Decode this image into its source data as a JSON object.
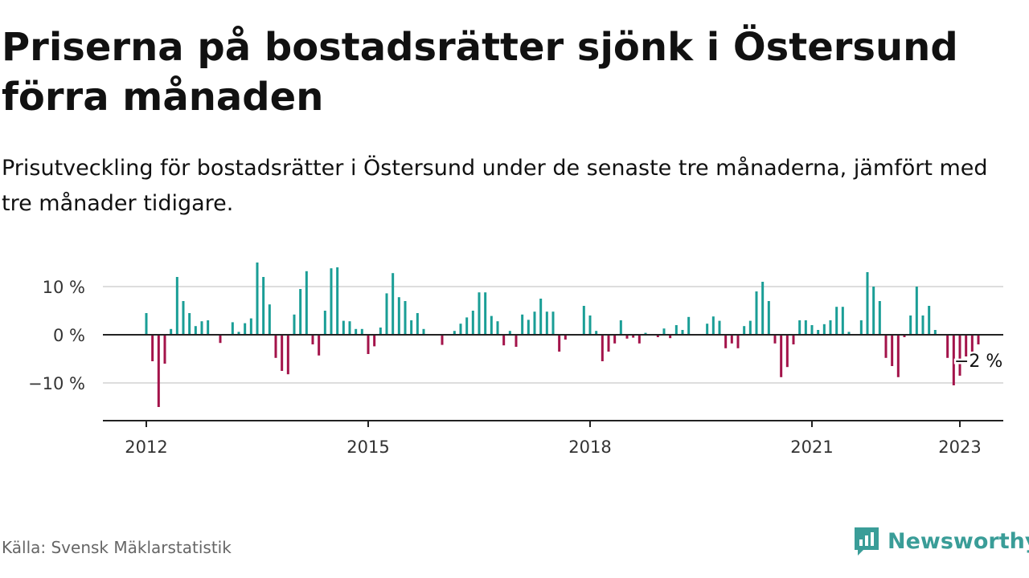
{
  "title": "Priserna på bostadsrätter sjönk i Östersund förra månaden",
  "subtitle": "Prisutveckling för bostadsrätter i Östersund under de senaste tre månaderna, jämfört med tre månader tidigare.",
  "source": "Källa: Svensk Mäklarstatistik",
  "brand": "Newsworthy",
  "colors": {
    "positive": "#1a9e96",
    "negative": "#a3134a",
    "brand": "#3a9d98"
  },
  "chart_data": {
    "type": "bar",
    "x_start": "2012-01",
    "x_end": "2023-01",
    "x_ticks": [
      "2012",
      "2015",
      "2018",
      "2021",
      "2023"
    ],
    "y_ticks": [
      10,
      0,
      -10
    ],
    "y_tick_labels": [
      "10 %",
      "0 %",
      "−10 %"
    ],
    "ylim": [
      -17,
      17
    ],
    "grid": true,
    "unit": "%",
    "last_label": "−2 %",
    "values": [
      4.5,
      -5.5,
      -15,
      -6,
      1.2,
      12,
      7,
      4.5,
      1.8,
      2.8,
      3,
      0,
      -1.7,
      0,
      2.6,
      0.6,
      2.4,
      3.4,
      15,
      12,
      6.3,
      -4.8,
      -7.5,
      -8.2,
      4.2,
      9.5,
      13.2,
      -2,
      -4.3,
      5,
      13.8,
      14,
      2.9,
      2.8,
      1.2,
      1.2,
      -4,
      -2.4,
      1.5,
      8.6,
      12.8,
      7.8,
      7,
      3,
      4.5,
      1.2,
      0,
      0,
      -2.1,
      0,
      0.8,
      2.3,
      3.6,
      5,
      8.8,
      8.8,
      3.9,
      2.8,
      -2.2,
      0.8,
      -2.5,
      4.2,
      3.1,
      4.8,
      7.5,
      4.8,
      4.8,
      -3.5,
      -1,
      0,
      0,
      6,
      4,
      0.8,
      -5.5,
      -3.5,
      -1.8,
      3,
      -0.8,
      -0.6,
      -1.8,
      0.4,
      0,
      -0.5,
      1.3,
      -0.7,
      2,
      1,
      3.7,
      0,
      0,
      2.3,
      3.8,
      2.9,
      -2.8,
      -1.8,
      -2.8,
      1.8,
      2.9,
      9,
      11,
      7,
      -1.8,
      -8.8,
      -6.7,
      -2,
      3,
      3,
      2,
      1,
      2.2,
      3,
      5.8,
      5.8,
      0.6,
      0,
      3,
      13,
      10,
      7,
      -4.8,
      -6.5,
      -8.8,
      -0.5,
      4,
      10,
      4,
      6,
      1,
      0,
      -4.8,
      -10.5,
      -8.5,
      -4.5,
      -3.5,
      -2
    ]
  }
}
